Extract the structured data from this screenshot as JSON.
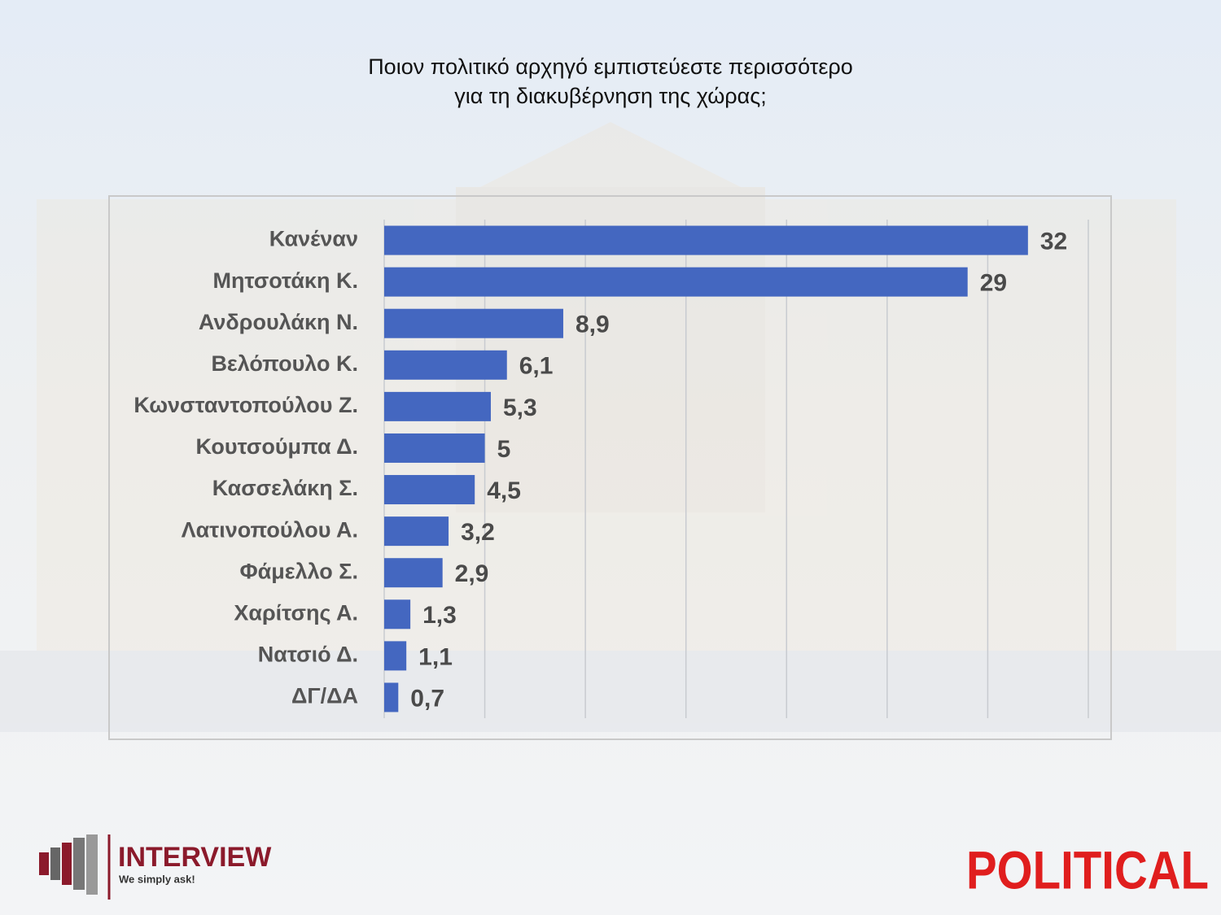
{
  "chart_data": {
    "type": "bar",
    "orientation": "horizontal",
    "title": "Ποιον πολιτικό αρχηγό εμπιστεύεστε περισσότερο\nγια τη διακυβέρνηση της χώρας;",
    "categories": [
      "Κανέναν",
      "Μητσοτάκη Κ.",
      "Ανδρουλάκη Ν.",
      "Βελόπουλο Κ.",
      "Κωνσταντοπούλου Ζ.",
      "Κουτσούμπα Δ.",
      "Κασσελάκη Σ.",
      "Λατινοπούλου Α.",
      "Φάμελλο Σ.",
      "Χαρίτσης Α.",
      "Νατσιό Δ.",
      "ΔΓ/ΔΑ"
    ],
    "values": [
      32,
      29,
      8.9,
      6.1,
      5.3,
      5,
      4.5,
      3.2,
      2.9,
      1.3,
      1.1,
      0.7
    ],
    "value_labels": [
      "32",
      "29",
      "8,9",
      "6,1",
      "5,3",
      "5",
      "4,5",
      "3,2",
      "2,9",
      "1,3",
      "1,1",
      "0,7"
    ],
    "color": "#4467c0",
    "xlim": [
      0,
      35
    ],
    "xticks": [
      0,
      5,
      10,
      15,
      20,
      25,
      30,
      35
    ],
    "grid": true
  },
  "branding": {
    "brand": "INTERVIEW",
    "tagline": "We simply ask!",
    "partner": "POLITICAL"
  }
}
